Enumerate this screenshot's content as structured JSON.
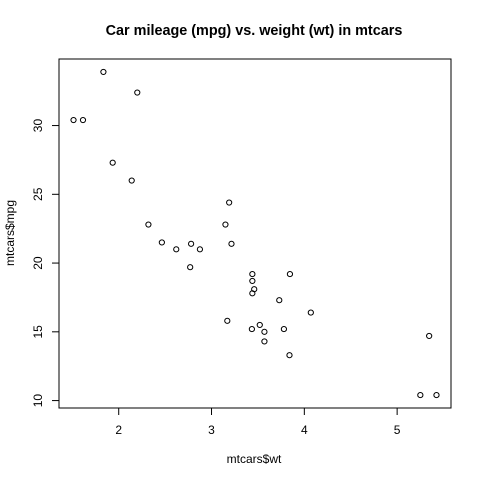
{
  "chart_data": {
    "type": "scatter",
    "title": "Car mileage (mpg) vs. weight (wt) in mtcars",
    "xlabel": "mtcars$wt",
    "ylabel": "mtcars$mpg",
    "xlim": [
      1.513,
      5.424
    ],
    "ylim": [
      10.4,
      33.9
    ],
    "xticks": [
      2,
      3,
      4,
      5
    ],
    "yticks": [
      10,
      15,
      20,
      25,
      30
    ],
    "grid": false,
    "legend": "none",
    "marker": "open-circle",
    "colors": {
      "points": "#000000",
      "axes": "#000000",
      "background": "#ffffff"
    },
    "x": [
      2.62,
      2.875,
      2.32,
      3.215,
      3.44,
      3.46,
      3.57,
      3.19,
      3.15,
      3.44,
      3.44,
      4.07,
      3.73,
      3.78,
      5.25,
      5.424,
      5.345,
      2.2,
      1.615,
      1.835,
      2.465,
      3.52,
      3.435,
      3.84,
      3.845,
      1.935,
      2.14,
      1.513,
      3.17,
      2.77,
      3.57,
      2.78
    ],
    "y": [
      21.0,
      21.0,
      22.8,
      21.4,
      18.7,
      18.1,
      14.3,
      24.4,
      22.8,
      19.2,
      17.8,
      16.4,
      17.3,
      15.2,
      10.4,
      10.4,
      14.7,
      32.4,
      30.4,
      33.9,
      21.5,
      15.5,
      15.2,
      13.3,
      19.2,
      27.3,
      26.0,
      30.4,
      15.8,
      19.7,
      15.0,
      21.4
    ]
  }
}
